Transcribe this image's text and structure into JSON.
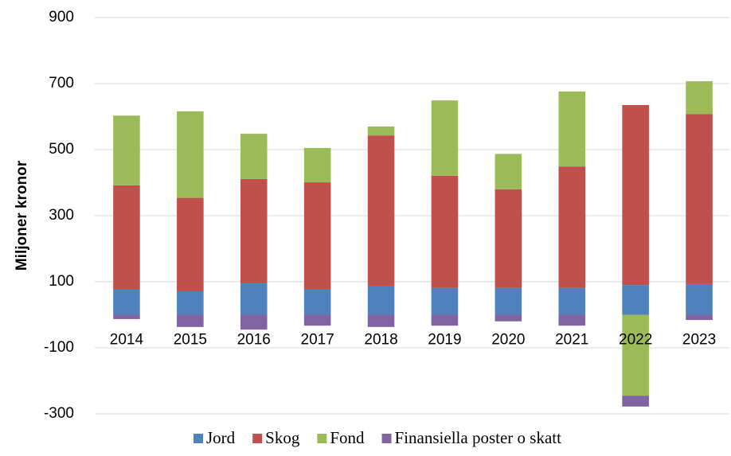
{
  "chart_data": {
    "type": "stacked_bar",
    "y_label": "Miljoner kronor",
    "categories": [
      "2014",
      "2015",
      "2016",
      "2017",
      "2018",
      "2019",
      "2020",
      "2021",
      "2022",
      "2023"
    ],
    "series": [
      {
        "name": "Jord",
        "color": "#4f81bd",
        "values": [
          76,
          71,
          95,
          76,
          88,
          81,
          81,
          81,
          90,
          93
        ]
      },
      {
        "name": "Skog",
        "color": "#c0504d",
        "values": [
          316,
          283,
          316,
          325,
          455,
          340,
          299,
          368,
          545,
          515
        ]
      },
      {
        "name": "Fond",
        "color": "#9bbb59",
        "values": [
          211,
          262,
          137,
          104,
          27,
          228,
          107,
          227,
          -245,
          99
        ]
      },
      {
        "name": "Finansiella poster o skatt",
        "color": "#8064a2",
        "values": [
          -13,
          -37,
          -45,
          -33,
          -37,
          -33,
          -20,
          -33,
          -33,
          -16
        ]
      }
    ],
    "ylim": [
      -300,
      900
    ],
    "yticks": [
      -300,
      -100,
      100,
      300,
      500,
      700,
      900
    ],
    "grid": true,
    "legend": "bottom"
  }
}
